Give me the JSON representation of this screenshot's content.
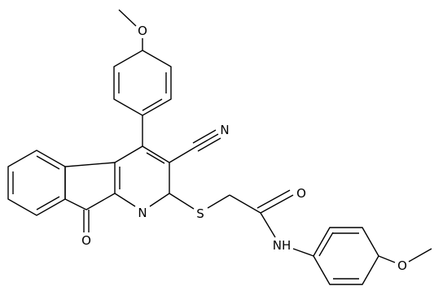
{
  "atoms": {
    "methoxy_top_o": "O",
    "cyano_n": "N",
    "pyridine_n": "N",
    "ketone_o": "O",
    "sulfur": "S",
    "amide_o": "O",
    "amide_nh": "NH",
    "methoxy_bottom_o": "O"
  }
}
